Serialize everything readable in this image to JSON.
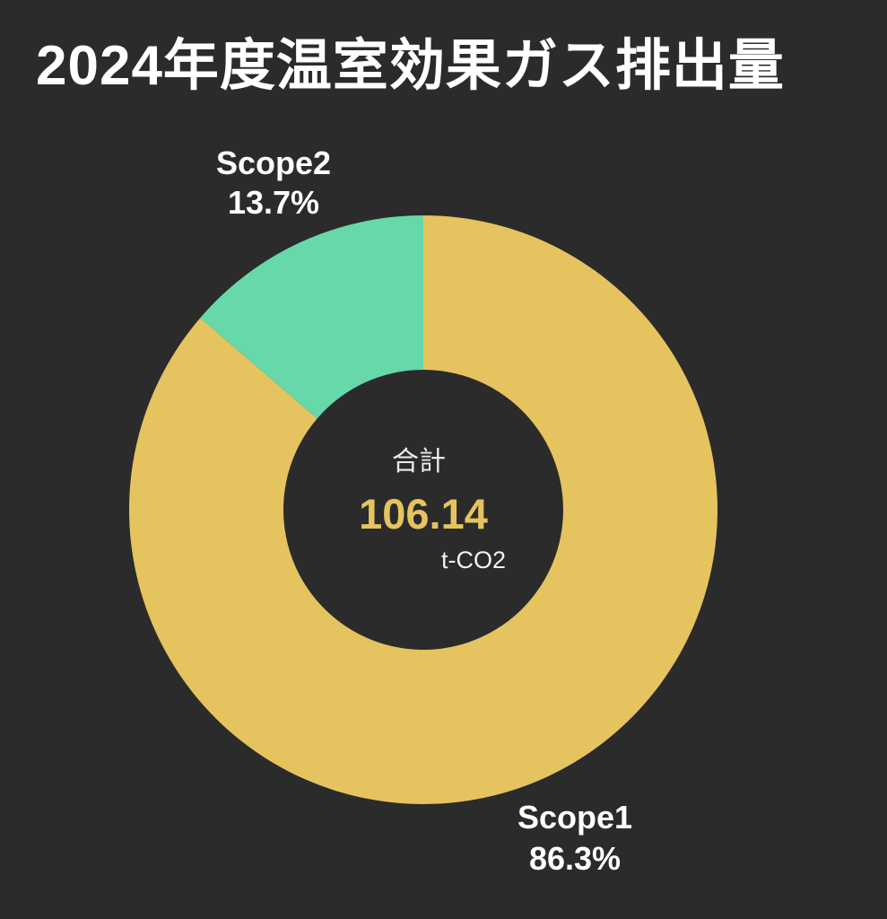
{
  "page": {
    "background_color": "#2b2b2b"
  },
  "chart_data": {
    "type": "pie",
    "subtype": "donut",
    "title": "2024年度温室効果ガス排出量",
    "start_angle": "top",
    "direction": "clockwise",
    "legend_position": "none",
    "segments": [
      {
        "label": "Scope1",
        "value_percent": 86.3,
        "percent_label": "86.3%",
        "color": "#e5c35f"
      },
      {
        "label": "Scope2",
        "value_percent": 13.7,
        "percent_label": "13.7%",
        "color": "#67d8aa"
      }
    ],
    "center": {
      "label": "合計",
      "value": "106.14",
      "unit": "t-CO2"
    },
    "colors": {
      "title": "#ffffff",
      "callout_text": "#ffffff",
      "center_label": "#ededed",
      "center_value": "#e5c35f",
      "center_unit": "#f2f2f2",
      "background": "#2b2b2b"
    }
  }
}
